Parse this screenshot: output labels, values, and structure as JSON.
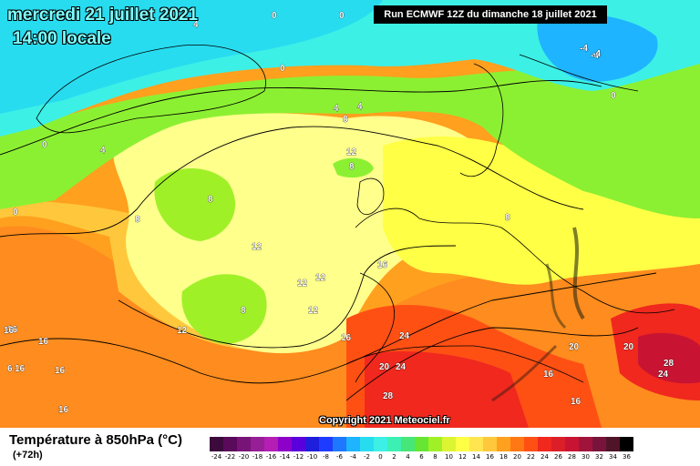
{
  "header": {
    "date": "mercredi 21 juillet 2021",
    "time": "14:00 locale",
    "run": "Run ECMWF 12Z du dimanche 18 juillet 2021"
  },
  "copyright": "Copyright 2021 Meteociel.fr",
  "legend": {
    "title": "Température à 850hPa (°C)",
    "subtitle": "(+72h)",
    "ticks": [
      "-24",
      "-22",
      "-20",
      "-18",
      "-16",
      "-14",
      "-12",
      "-10",
      "-8",
      "-6",
      "-4",
      "-2",
      "0",
      "2",
      "4",
      "6",
      "8",
      "10",
      "12",
      "14",
      "16",
      "18",
      "20",
      "22",
      "24",
      "26",
      "28",
      "30",
      "32",
      "34",
      "36"
    ],
    "colors": [
      "#3c0a3c",
      "#5a0a5a",
      "#781478",
      "#961e96",
      "#b41eb4",
      "#8c00c8",
      "#5a00dc",
      "#1e1edc",
      "#1e3cff",
      "#1e78ff",
      "#1eb4ff",
      "#28dcf0",
      "#3cf0e6",
      "#3cf0b4",
      "#46e678",
      "#64e632",
      "#a0f028",
      "#dcf532",
      "#ffff46",
      "#ffe650",
      "#ffc83c",
      "#ffa01e",
      "#ff7814",
      "#ff5014",
      "#f0281e",
      "#dc1e28",
      "#c81432",
      "#a0143c",
      "#78143c",
      "#501428",
      "#000000"
    ]
  },
  "map_labels": [
    {
      "text": "4"
    },
    {
      "text": "0"
    },
    {
      "text": "0"
    },
    {
      "text": "0"
    },
    {
      "text": "-4"
    },
    {
      "text": "-4"
    },
    {
      "text": "-4"
    },
    {
      "text": "0"
    },
    {
      "text": "0"
    },
    {
      "text": "4"
    },
    {
      "text": "4"
    },
    {
      "text": "8"
    },
    {
      "text": "0"
    },
    {
      "text": "4"
    },
    {
      "text": "12"
    },
    {
      "text": "8"
    },
    {
      "text": "8"
    },
    {
      "text": "8"
    },
    {
      "text": "0"
    },
    {
      "text": "12"
    },
    {
      "text": "8"
    },
    {
      "text": "12"
    },
    {
      "text": "12"
    },
    {
      "text": "16"
    },
    {
      "text": "8"
    },
    {
      "text": "12"
    },
    {
      "text": "12"
    },
    {
      "text": "16"
    },
    {
      "text": "16"
    },
    {
      "text": "16"
    },
    {
      "text": "24"
    },
    {
      "text": "20"
    },
    {
      "text": "24"
    },
    {
      "text": "20"
    },
    {
      "text": "20"
    },
    {
      "text": "16"
    },
    {
      "text": "6"
    },
    {
      "text": "16"
    },
    {
      "text": "16"
    },
    {
      "text": "28"
    },
    {
      "text": "16"
    },
    {
      "text": "28"
    },
    {
      "text": "24"
    },
    {
      "text": "16"
    },
    {
      "text": "16"
    }
  ]
}
